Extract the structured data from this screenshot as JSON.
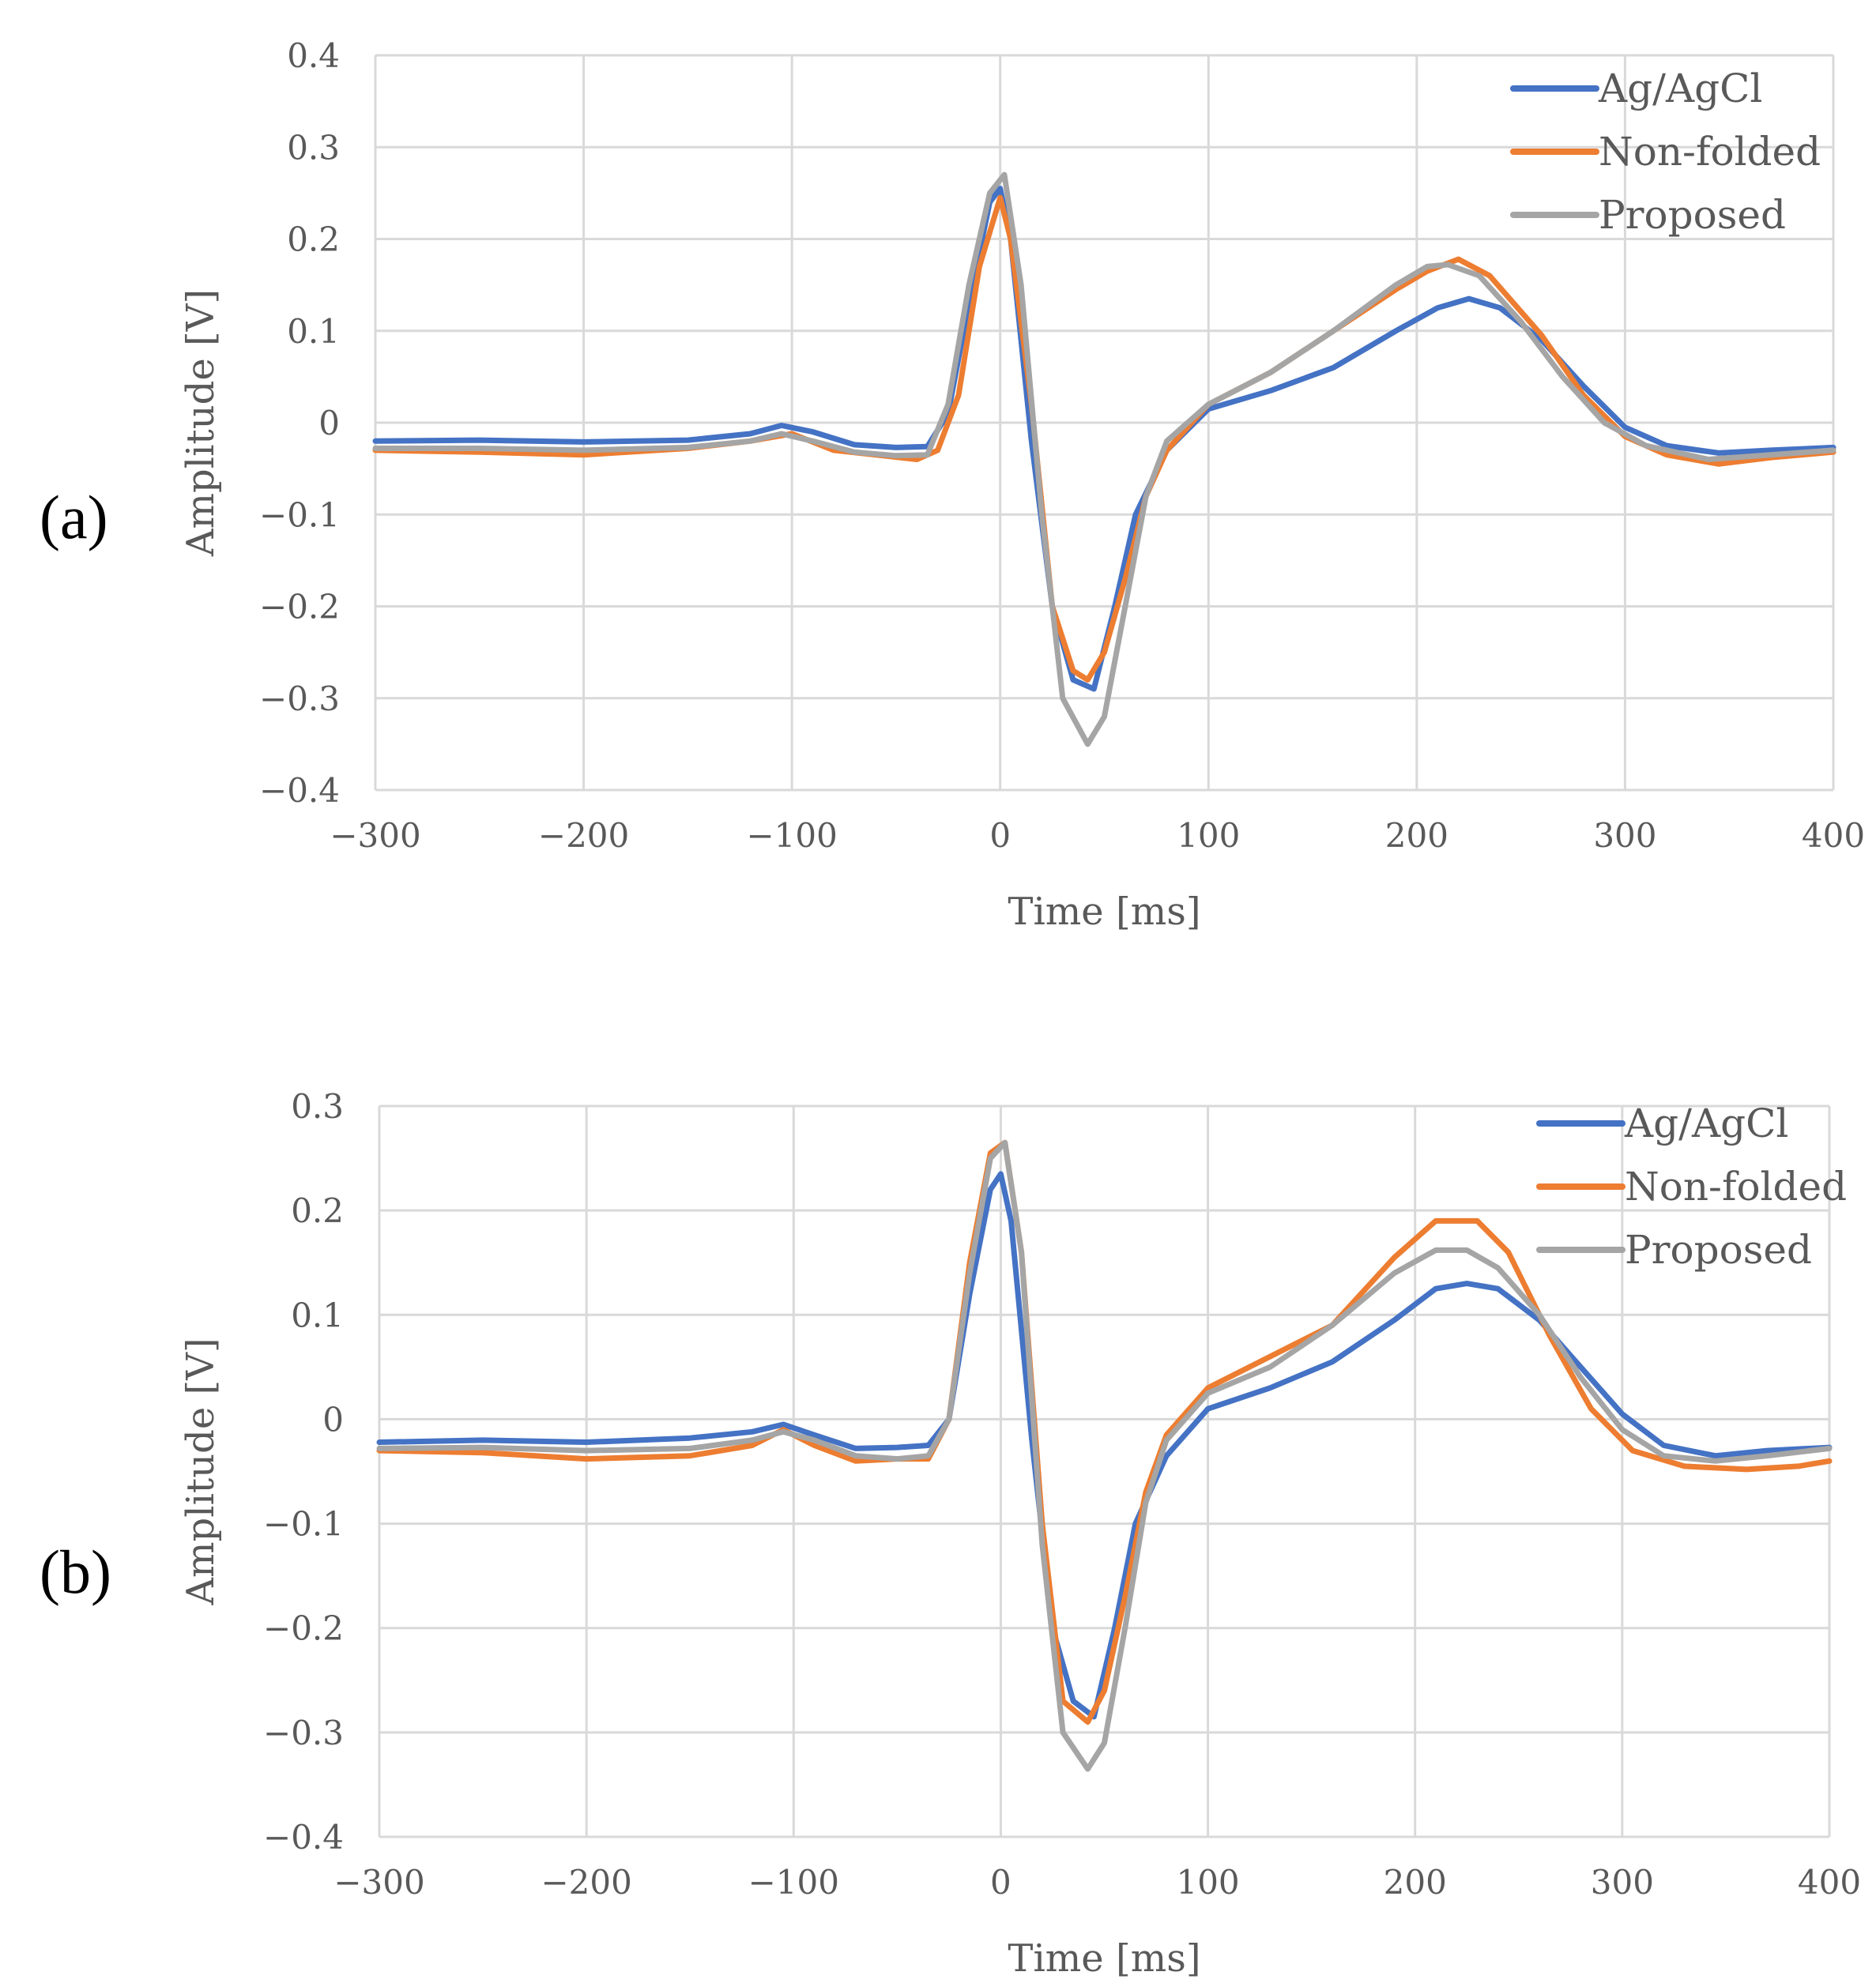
{
  "chart_data": [
    {
      "type": "line",
      "panel_label": "(a)",
      "title": "",
      "xlabel": "Time [ms]",
      "ylabel": "Amplitude [V]",
      "xlim": [
        -300,
        400
      ],
      "ylim": [
        -0.4,
        0.4
      ],
      "xticks": [
        -300,
        -200,
        -100,
        0,
        100,
        200,
        300,
        400
      ],
      "xtick_labels": [
        "−300",
        "−200",
        "−100",
        "0",
        "100",
        "200",
        "300",
        "400"
      ],
      "yticks": [
        0.4,
        0.3,
        0.2,
        0.1,
        0,
        -0.1,
        -0.2,
        -0.3,
        -0.4
      ],
      "ytick_labels": [
        "0.4",
        "0.3",
        "0.2",
        "0.1",
        "0",
        "−0.1",
        "−0.2",
        "−0.3",
        "−0.4"
      ],
      "grid": true,
      "legend_position": "top-right",
      "series": [
        {
          "name": "Ag/AgCl",
          "color": "#4472C4",
          "x": [
            -300,
            -250,
            -200,
            -150,
            -120,
            -105,
            -90,
            -70,
            -50,
            -35,
            -25,
            -15,
            -5,
            0,
            5,
            15,
            25,
            35,
            45,
            55,
            65,
            80,
            100,
            130,
            160,
            190,
            210,
            225,
            240,
            260,
            280,
            300,
            320,
            345,
            370,
            400
          ],
          "y": [
            -0.02,
            -0.019,
            -0.021,
            -0.019,
            -0.012,
            -0.003,
            -0.01,
            -0.024,
            -0.027,
            -0.026,
            0.01,
            0.13,
            0.24,
            0.255,
            0.2,
            -0.02,
            -0.2,
            -0.28,
            -0.29,
            -0.2,
            -0.1,
            -0.03,
            0.015,
            0.035,
            0.06,
            0.1,
            0.125,
            0.135,
            0.125,
            0.09,
            0.04,
            -0.005,
            -0.025,
            -0.033,
            -0.03,
            -0.027
          ]
        },
        {
          "name": "Non-folded",
          "color": "#ED7D31",
          "x": [
            -300,
            -250,
            -200,
            -150,
            -120,
            -100,
            -80,
            -60,
            -40,
            -30,
            -20,
            -10,
            0,
            5,
            15,
            25,
            35,
            42,
            50,
            60,
            70,
            80,
            100,
            130,
            160,
            190,
            205,
            220,
            235,
            260,
            280,
            300,
            320,
            345,
            370,
            400
          ],
          "y": [
            -0.03,
            -0.032,
            -0.035,
            -0.028,
            -0.02,
            -0.012,
            -0.03,
            -0.035,
            -0.04,
            -0.03,
            0.03,
            0.17,
            0.245,
            0.2,
            0.02,
            -0.2,
            -0.27,
            -0.28,
            -0.25,
            -0.17,
            -0.08,
            -0.03,
            0.02,
            0.055,
            0.1,
            0.145,
            0.165,
            0.178,
            0.16,
            0.095,
            0.03,
            -0.015,
            -0.035,
            -0.045,
            -0.038,
            -0.032
          ]
        },
        {
          "name": "Proposed",
          "color": "#A5A5A5",
          "x": [
            -300,
            -250,
            -200,
            -150,
            -120,
            -105,
            -90,
            -70,
            -50,
            -35,
            -25,
            -15,
            -5,
            2,
            10,
            20,
            30,
            42,
            50,
            60,
            70,
            80,
            100,
            130,
            160,
            190,
            205,
            215,
            230,
            250,
            270,
            290,
            310,
            340,
            370,
            400
          ],
          "y": [
            -0.028,
            -0.028,
            -0.03,
            -0.027,
            -0.02,
            -0.012,
            -0.02,
            -0.032,
            -0.036,
            -0.035,
            0.02,
            0.15,
            0.25,
            0.27,
            0.15,
            -0.1,
            -0.3,
            -0.35,
            -0.32,
            -0.2,
            -0.08,
            -0.02,
            0.02,
            0.055,
            0.1,
            0.15,
            0.17,
            0.172,
            0.16,
            0.11,
            0.05,
            0.0,
            -0.025,
            -0.04,
            -0.035,
            -0.03
          ]
        }
      ]
    },
    {
      "type": "line",
      "panel_label": "(b)",
      "title": "",
      "xlabel": "Time [ms]",
      "ylabel": "Amplitude [V]",
      "xlim": [
        -300,
        400
      ],
      "ylim": [
        -0.4,
        0.3
      ],
      "xticks": [
        -300,
        -200,
        -100,
        0,
        100,
        200,
        300,
        400
      ],
      "xtick_labels": [
        "−300",
        "−200",
        "−100",
        "0",
        "100",
        "200",
        "300",
        "400"
      ],
      "yticks": [
        0.3,
        0.2,
        0.1,
        0,
        -0.1,
        -0.2,
        -0.3,
        -0.4
      ],
      "ytick_labels": [
        "0.3",
        "0.2",
        "0.1",
        "0",
        "−0.1",
        "−0.2",
        "−0.3",
        "−0.4"
      ],
      "grid": true,
      "legend_position": "top-right",
      "series": [
        {
          "name": "Ag/AgCl",
          "color": "#4472C4",
          "x": [
            -300,
            -250,
            -200,
            -150,
            -120,
            -105,
            -90,
            -70,
            -50,
            -35,
            -25,
            -15,
            -5,
            0,
            5,
            15,
            25,
            35,
            45,
            55,
            65,
            80,
            100,
            130,
            160,
            190,
            210,
            225,
            240,
            260,
            280,
            300,
            320,
            345,
            370,
            400
          ],
          "y": [
            -0.022,
            -0.02,
            -0.022,
            -0.018,
            -0.012,
            -0.005,
            -0.015,
            -0.028,
            -0.027,
            -0.025,
            0.0,
            0.12,
            0.22,
            0.235,
            0.19,
            -0.02,
            -0.2,
            -0.27,
            -0.285,
            -0.2,
            -0.1,
            -0.035,
            0.01,
            0.03,
            0.055,
            0.095,
            0.125,
            0.13,
            0.125,
            0.095,
            0.05,
            0.005,
            -0.025,
            -0.035,
            -0.03,
            -0.027
          ]
        },
        {
          "name": "Non-folded",
          "color": "#ED7D31",
          "x": [
            -300,
            -250,
            -200,
            -150,
            -120,
            -105,
            -90,
            -70,
            -50,
            -35,
            -25,
            -15,
            -5,
            2,
            10,
            20,
            30,
            42,
            50,
            60,
            70,
            80,
            100,
            130,
            160,
            190,
            210,
            230,
            245,
            265,
            285,
            305,
            330,
            360,
            385,
            400
          ],
          "y": [
            -0.03,
            -0.032,
            -0.038,
            -0.035,
            -0.025,
            -0.01,
            -0.025,
            -0.04,
            -0.038,
            -0.038,
            0.0,
            0.15,
            0.255,
            0.265,
            0.16,
            -0.1,
            -0.27,
            -0.29,
            -0.26,
            -0.17,
            -0.07,
            -0.015,
            0.03,
            0.06,
            0.09,
            0.155,
            0.19,
            0.19,
            0.16,
            0.08,
            0.01,
            -0.03,
            -0.045,
            -0.048,
            -0.045,
            -0.04
          ]
        },
        {
          "name": "Proposed",
          "color": "#A5A5A5",
          "x": [
            -300,
            -250,
            -200,
            -150,
            -120,
            -105,
            -90,
            -70,
            -50,
            -35,
            -25,
            -15,
            -5,
            2,
            10,
            20,
            30,
            42,
            50,
            60,
            70,
            80,
            100,
            130,
            160,
            190,
            210,
            225,
            240,
            260,
            280,
            300,
            320,
            345,
            370,
            400
          ],
          "y": [
            -0.028,
            -0.027,
            -0.03,
            -0.028,
            -0.02,
            -0.012,
            -0.02,
            -0.035,
            -0.038,
            -0.035,
            0.0,
            0.14,
            0.25,
            0.265,
            0.16,
            -0.12,
            -0.3,
            -0.335,
            -0.31,
            -0.2,
            -0.08,
            -0.02,
            0.025,
            0.05,
            0.09,
            0.14,
            0.162,
            0.162,
            0.145,
            0.1,
            0.04,
            -0.01,
            -0.035,
            -0.04,
            -0.035,
            -0.028
          ]
        }
      ]
    }
  ]
}
